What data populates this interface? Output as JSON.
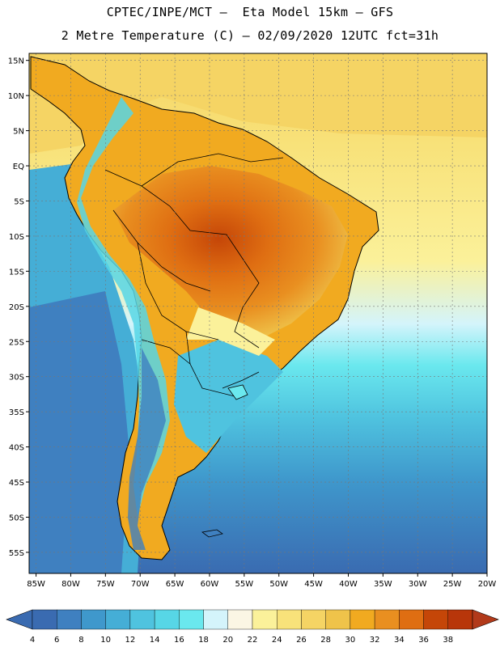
{
  "header": {
    "line1": "CPTEC/INPE/MCT –  Eta Model 15km – GFS",
    "line2": "2 Metre Temperature (C) – 02/09/2020 12UTC fct=31h"
  },
  "map": {
    "lat_labels": [
      "15N",
      "10N",
      "5N",
      "EQ",
      "5S",
      "10S",
      "15S",
      "20S",
      "25S",
      "30S",
      "35S",
      "40S",
      "45S",
      "50S",
      "55S"
    ],
    "lat_values": [
      15,
      10,
      5,
      0,
      -5,
      -10,
      -15,
      -20,
      -25,
      -30,
      -35,
      -40,
      -45,
      -50,
      -55
    ],
    "lon_labels": [
      "85W",
      "80W",
      "75W",
      "70W",
      "65W",
      "60W",
      "55W",
      "50W",
      "45W",
      "40W",
      "35W",
      "30W",
      "25W",
      "20W"
    ],
    "lon_values": [
      -85,
      -80,
      -75,
      -70,
      -65,
      -60,
      -55,
      -50,
      -45,
      -40,
      -35,
      -30,
      -25,
      -20
    ],
    "extent": {
      "lon_min": -86,
      "lon_max": -20,
      "lat_min": -58,
      "lat_max": 16
    }
  },
  "colorbar": {
    "ticks": [
      "4",
      "6",
      "8",
      "10",
      "12",
      "14",
      "16",
      "18",
      "20",
      "22",
      "24",
      "26",
      "28",
      "30",
      "32",
      "34",
      "36",
      "38"
    ],
    "colors": [
      "#3a6bb1",
      "#3f80c0",
      "#3f98cc",
      "#45aed6",
      "#4fc3df",
      "#57d6e6",
      "#6ae8ee",
      "#d4f4fb",
      "#fbf6e4",
      "#fbf19a",
      "#f8e27a",
      "#f5d464",
      "#efc34a",
      "#f1aa20",
      "#e98f20",
      "#df6e12",
      "#c54608",
      "#b8360a"
    ],
    "under_color": "#3a6bb1",
    "over_color": "#b23a1a"
  }
}
